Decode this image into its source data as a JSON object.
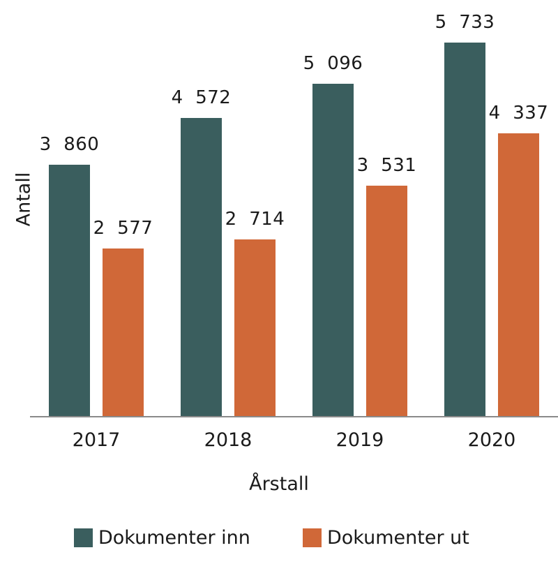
{
  "chart_data": {
    "type": "bar",
    "title": "",
    "xlabel": "Årstall",
    "ylabel": "Antall",
    "categories": [
      "2017",
      "2018",
      "2019",
      "2020"
    ],
    "series": [
      {
        "name": "Dokumenter inn",
        "color": "#3a5e5e",
        "values": [
          3860,
          4572,
          5096,
          5733
        ],
        "labels": [
          "3 860",
          "4 572",
          "5 096",
          "5 733"
        ]
      },
      {
        "name": "Dokumenter ut",
        "color": "#d06838",
        "values": [
          2577,
          2714,
          3531,
          4337
        ],
        "labels": [
          "2 577",
          "2 714",
          "3 531",
          "4 337"
        ]
      }
    ],
    "ylim": [
      0,
      5733
    ],
    "grid": false,
    "legend_position": "bottom"
  },
  "axes": {
    "xlabel": "Årstall",
    "ylabel": "Antall"
  },
  "legend": [
    {
      "label": "Dokumenter inn",
      "color": "#3a5e5e"
    },
    {
      "label": "Dokumenter ut",
      "color": "#d06838"
    }
  ]
}
